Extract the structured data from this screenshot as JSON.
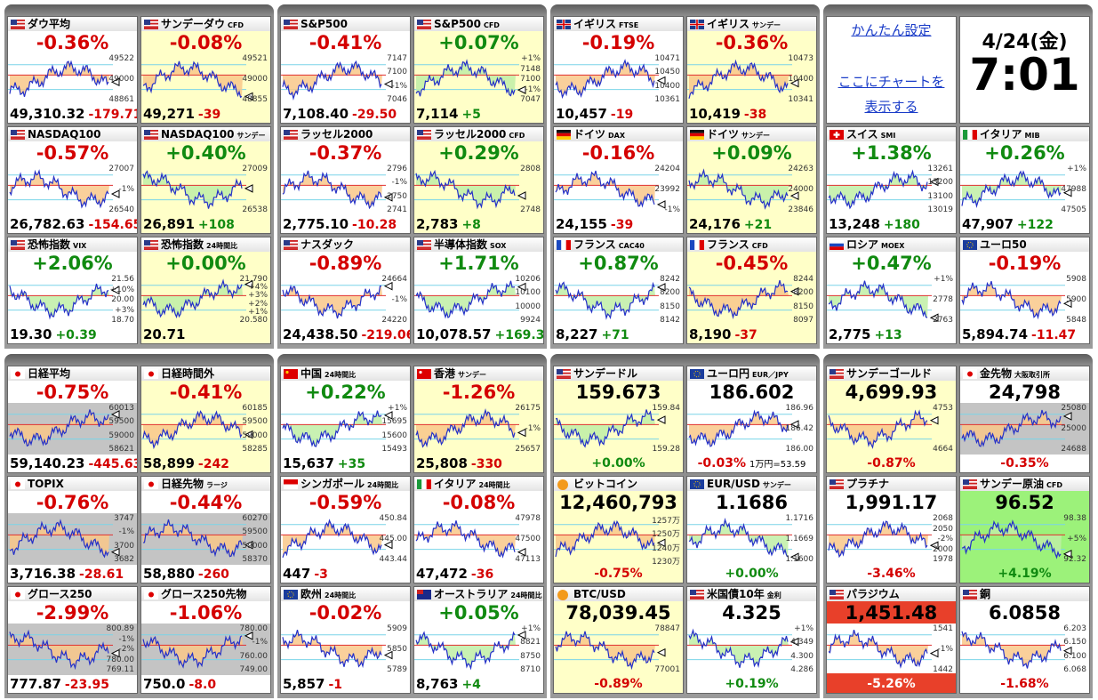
{
  "groups": [
    {
      "tiles": [
        {
          "flag": "us",
          "name": "ダウ平均",
          "pct": "-0.36%",
          "price": "49,310.32",
          "diff": "-179.71",
          "labels": [
            "49522",
            "49000",
            "48861"
          ]
        },
        {
          "flag": "us",
          "name": "サンデーダウ",
          "tag": "CFD",
          "pct": "-0.08%",
          "price": "49,271",
          "diff": "-39",
          "bg": "yellow",
          "labels": [
            "49521",
            "49000",
            "48855"
          ]
        },
        {
          "flag": "us",
          "name": "NASDAQ100",
          "pct": "-0.57%",
          "price": "26,782.63",
          "diff": "-154.65",
          "labels": [
            "27007",
            "-1%",
            "26540"
          ]
        },
        {
          "flag": "us",
          "name": "NASDAQ100",
          "tag": "サンデー",
          "pct": "+0.40%",
          "price": "26,891",
          "diff": "+108",
          "bg": "yellow",
          "labels": [
            "27009",
            "26538"
          ]
        },
        {
          "flag": "us",
          "name": "恐怖指数",
          "tag": "VIX",
          "pct": "+2.06%",
          "price": "19.30",
          "diff": "+0.39",
          "labels": [
            "21.56",
            "+10%",
            "20.00",
            "+3%",
            "18.70"
          ]
        },
        {
          "flag": "us",
          "name": "恐怖指数",
          "tag": "24時間比",
          "pct": "+0.00%",
          "price": "20.71",
          "bg": "yellow",
          "labels": [
            "21.790",
            "+4%",
            "+3%",
            "+2%",
            "+1%",
            "20.580"
          ]
        }
      ]
    },
    {
      "tiles": [
        {
          "flag": "us",
          "name": "S&P500",
          "pct": "-0.41%",
          "price": "7,108.40",
          "diff": "-29.50",
          "labels": [
            "7147",
            "7100",
            "-1%",
            "7046"
          ]
        },
        {
          "flag": "us",
          "name": "S&P500",
          "tag": "CFD",
          "pct": "+0.07%",
          "price": "7,114",
          "diff": "+5",
          "bg": "yellow",
          "labels": [
            "+1%",
            "7148",
            "7100",
            "-1%",
            "7047"
          ]
        },
        {
          "flag": "us",
          "name": "ラッセル2000",
          "pct": "-0.37%",
          "price": "2,775.10",
          "diff": "-10.28",
          "labels": [
            "2796",
            "-1%",
            "2750",
            "2741"
          ]
        },
        {
          "flag": "us",
          "name": "ラッセル2000",
          "tag": "CFD",
          "pct": "+0.29%",
          "price": "2,783",
          "diff": "+8",
          "bg": "yellow",
          "labels": [
            "2808",
            "2748"
          ]
        },
        {
          "flag": "us",
          "name": "ナスダック",
          "pct": "-0.89%",
          "price": "24,438.50",
          "diff": "-219.06",
          "labels": [
            "24664",
            "-1%",
            "24220"
          ]
        },
        {
          "flag": "us",
          "name": "半導体指数",
          "tag": "SOX",
          "pct": "+1.71%",
          "price": "10,078.57",
          "diff": "+169.31",
          "labels": [
            "10206",
            "10100",
            "10000",
            "9924"
          ]
        }
      ]
    },
    {
      "tiles": [
        {
          "flag": "gb",
          "name": "イギリス",
          "tag": "FTSE",
          "pct": "-0.19%",
          "price": "10,457",
          "diff": "-19",
          "labels": [
            "10471",
            "10450",
            "10400",
            "10361"
          ]
        },
        {
          "flag": "gb",
          "name": "イギリス",
          "tag": "サンデー",
          "pct": "-0.36%",
          "price": "10,419",
          "diff": "-38",
          "bg": "yellow",
          "labels": [
            "10473",
            "10400",
            "10341"
          ]
        },
        {
          "flag": "de",
          "name": "ドイツ",
          "tag": "DAX",
          "pct": "-0.16%",
          "price": "24,155",
          "diff": "-39",
          "labels": [
            "24204",
            "23992",
            "-1%"
          ]
        },
        {
          "flag": "de",
          "name": "ドイツ",
          "tag": "サンデー",
          "pct": "+0.09%",
          "price": "24,176",
          "diff": "+21",
          "bg": "yellow",
          "labels": [
            "24263",
            "24000",
            "23846"
          ]
        },
        {
          "flag": "fr",
          "name": "フランス",
          "tag": "CAC40",
          "pct": "+0.87%",
          "price": "8,227",
          "diff": "+71",
          "labels": [
            "8242",
            "8200",
            "8150",
            "8142"
          ]
        },
        {
          "flag": "fr",
          "name": "フランス",
          "tag": "CFD",
          "pct": "-0.45%",
          "price": "8,190",
          "diff": "-37",
          "bg": "yellow",
          "labels": [
            "8244",
            "8200",
            "8150",
            "8097"
          ]
        }
      ]
    },
    {
      "tiles": [
        {
          "flag": "ch",
          "name": "スイス",
          "tag": "SMI",
          "pct": "+1.38%",
          "price": "13,248",
          "diff": "+180",
          "labels": [
            "13261",
            "13200",
            "13100",
            "13019"
          ]
        },
        {
          "flag": "it",
          "name": "イタリア",
          "tag": "MIB",
          "pct": "+0.26%",
          "price": "47,907",
          "diff": "+122",
          "labels": [
            "+1%",
            "47988",
            "47505"
          ]
        },
        {
          "flag": "ru",
          "name": "ロシア",
          "tag": "MOEX",
          "pct": "+0.47%",
          "price": "2,775",
          "diff": "+13",
          "labels": [
            "+1%",
            "2778",
            "2763"
          ]
        },
        {
          "flag": "eu",
          "name": "ユーロ50",
          "pct": "-0.19%",
          "price": "5,894.74",
          "diff": "-11.47",
          "labels": [
            "5908",
            "5900",
            "5848"
          ]
        }
      ]
    },
    {
      "tiles": [
        {
          "flag": "jp",
          "name": "日経平均",
          "pct": "-0.75%",
          "price": "59,140.23",
          "diff": "-445.63",
          "bg": "gray",
          "labels": [
            "60013",
            "59500",
            "59000",
            "58621"
          ]
        },
        {
          "flag": "jp",
          "name": "日経時間外",
          "pct": "-0.41%",
          "price": "58,899",
          "diff": "-242",
          "bg": "yellow",
          "labels": [
            "60185",
            "59500",
            "59000",
            "58285"
          ]
        },
        {
          "flag": "jp",
          "name": "TOPIX",
          "pct": "-0.76%",
          "price": "3,716.38",
          "diff": "-28.61",
          "bg": "gray",
          "labels": [
            "3747",
            "-1%",
            "3700",
            "3682"
          ]
        },
        {
          "flag": "jp",
          "name": "日経先物",
          "tag": "ラージ",
          "pct": "-0.44%",
          "price": "58,880",
          "diff": "-260",
          "bg": "gray",
          "labels": [
            "60270",
            "59500",
            "59000",
            "58370"
          ]
        },
        {
          "flag": "jp",
          "name": "グロース250",
          "pct": "-2.99%",
          "price": "777.87",
          "diff": "-23.95",
          "bg": "gray",
          "labels": [
            "800.89",
            "-1%",
            "-2%",
            "780.00",
            "769.11"
          ]
        },
        {
          "flag": "jp",
          "name": "グロース250先物",
          "pct": "-1.06%",
          "price": "750.0",
          "diff": "-8.0",
          "bg": "gray",
          "labels": [
            "780.00",
            "-1%",
            "760.00",
            "749.00"
          ]
        }
      ]
    },
    {
      "tiles": [
        {
          "flag": "cn",
          "name": "中国",
          "tag": "24時間比",
          "pct": "+0.22%",
          "price": "15,637",
          "diff": "+35",
          "labels": [
            "+1%",
            "15695",
            "15600",
            "15493"
          ]
        },
        {
          "flag": "hk",
          "name": "香港",
          "tag": "サンデー",
          "pct": "-1.26%",
          "price": "25,808",
          "diff": "-330",
          "bg": "yellow",
          "labels": [
            "26175",
            "-1%",
            "25657"
          ]
        },
        {
          "flag": "sg",
          "name": "シンガポール",
          "tag": "24時間比",
          "pct": "-0.59%",
          "price": "447",
          "diff": "-3",
          "labels": [
            "450.84",
            "445.00",
            "443.44"
          ]
        },
        {
          "flag": "it",
          "name": "イタリア",
          "tag": "24時間比",
          "pct": "-0.08%",
          "price": "47,472",
          "diff": "-36",
          "labels": [
            "47978",
            "47500",
            "47113"
          ]
        },
        {
          "flag": "eu",
          "name": "欧州",
          "tag": "24時間比",
          "pct": "-0.02%",
          "price": "5,857",
          "diff": "-1",
          "labels": [
            "5909",
            "5850",
            "5789"
          ]
        },
        {
          "flag": "au",
          "name": "オーストラリア",
          "tag": "24時間比",
          "pct": "+0.05%",
          "price": "8,763",
          "diff": "+4",
          "labels": [
            "+1%",
            "8821",
            "8750",
            "8710"
          ]
        }
      ]
    },
    {
      "layout": "quote",
      "tiles": [
        {
          "flag": "us",
          "name": "サンデードル",
          "price": "159.673",
          "pct": "+0.00%",
          "bg": "yellow",
          "labels": [
            "159.84",
            "159.28"
          ]
        },
        {
          "flag": "eu",
          "name": "ユーロ円",
          "tag": "EUR／JPY",
          "price": "186.602",
          "pct": "-0.03%",
          "note": "1万円=53.59",
          "labels": [
            "186.96",
            "186.42",
            "186.00"
          ]
        },
        {
          "flag": "btc",
          "name": "ビットコイン",
          "price": "12,460,793",
          "pct": "-0.75%",
          "bg": "yellow",
          "labels": [
            "1257万",
            "1250万",
            "1240万",
            "1230万"
          ]
        },
        {
          "flag": "eu",
          "name": "EUR/USD",
          "tag": "サンデー",
          "price": "1.1686",
          "pct": "+0.00%",
          "labels": [
            "1.1716",
            "1.1669",
            "1.1600"
          ]
        },
        {
          "flag": "btc",
          "name": "BTC/USD",
          "price": "78,039.45",
          "pct": "-0.89%",
          "bg": "yellow",
          "labels": [
            "78847",
            "77001"
          ]
        },
        {
          "flag": "us",
          "name": "米国債10年",
          "tag": "金利",
          "price": "4.325",
          "pct": "+0.19%",
          "labels": [
            "+1%",
            "4.349",
            "4.300",
            "4.286"
          ]
        }
      ]
    },
    {
      "layout": "quote",
      "tiles": [
        {
          "flag": "us",
          "name": "サンデーゴールド",
          "price": "4,699.93",
          "pct": "-0.87%",
          "bg": "yellow",
          "labels": [
            "4753",
            "4664"
          ]
        },
        {
          "flag": "jp",
          "name": "金先物",
          "tag": "大阪取引所",
          "price": "24,798",
          "pct": "-0.35%",
          "bg": "gray",
          "labels": [
            "25080",
            "25000",
            "24688"
          ]
        },
        {
          "flag": "us",
          "name": "プラチナ",
          "price": "1,991.17",
          "pct": "-3.46%",
          "labels": [
            "2068",
            "2050",
            "-2%",
            "2000",
            "1978"
          ]
        },
        {
          "flag": "us",
          "name": "サンデー原油",
          "tag": "CFD",
          "price": "96.52",
          "pct": "+4.19%",
          "bg": "green",
          "labels": [
            "98.38",
            "+5%",
            "92.32"
          ]
        },
        {
          "flag": "us",
          "name": "パラジウム",
          "price": "1,451.48",
          "pct": "-5.26%",
          "bg": "red",
          "labels": [
            "1541",
            "-1%",
            "1442"
          ]
        },
        {
          "flag": "us",
          "name": "銅",
          "price": "6.0858",
          "pct": "-1.68%",
          "labels": [
            "6.203",
            "6.150",
            "6.100",
            "6.068"
          ]
        }
      ]
    }
  ],
  "settings": {
    "link": "かんたん設定",
    "add_line1": "ここにチャートを",
    "add_line2": "表示する"
  },
  "clock": {
    "date": "4/24(金)",
    "time": "7:01"
  }
}
